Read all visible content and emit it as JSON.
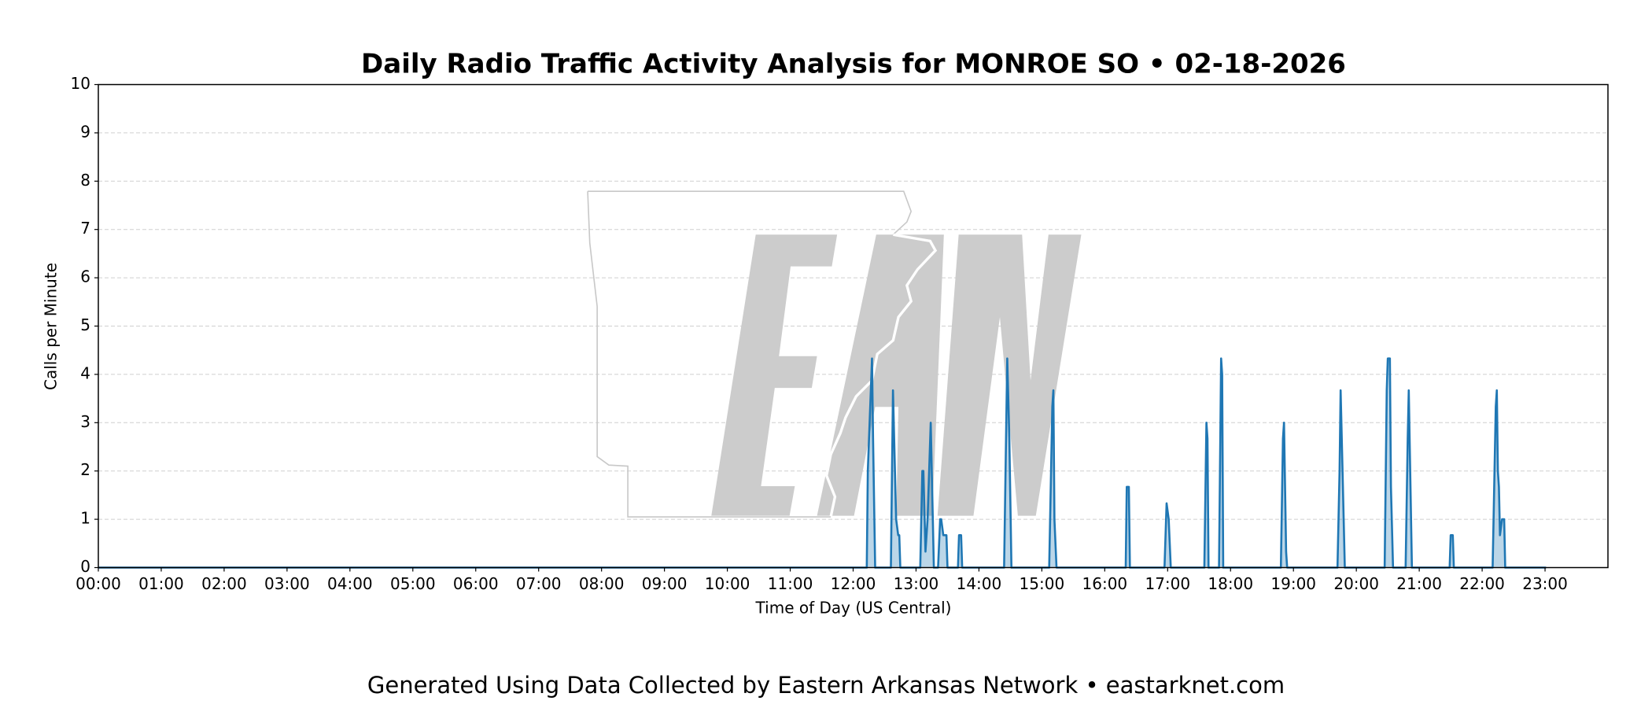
{
  "chart_data": {
    "type": "area",
    "title": "Daily Radio Traffic Activity Analysis for MONROE SO • 02-18-2026",
    "x_label": "Time of Day (US Central)",
    "y_label": "Calls per Minute",
    "footer": "Generated Using Data Collected by Eastern Arkansas Network • eastarknet.com",
    "color": "#1f77b4",
    "grid": true,
    "xlim": [
      0,
      1440
    ],
    "ylim": [
      0,
      10
    ],
    "xticks": [
      {
        "value": 0,
        "label": "00:00"
      },
      {
        "value": 60,
        "label": "01:00"
      },
      {
        "value": 120,
        "label": "02:00"
      },
      {
        "value": 180,
        "label": "03:00"
      },
      {
        "value": 240,
        "label": "04:00"
      },
      {
        "value": 300,
        "label": "05:00"
      },
      {
        "value": 360,
        "label": "06:00"
      },
      {
        "value": 420,
        "label": "07:00"
      },
      {
        "value": 480,
        "label": "08:00"
      },
      {
        "value": 540,
        "label": "09:00"
      },
      {
        "value": 600,
        "label": "10:00"
      },
      {
        "value": 660,
        "label": "11:00"
      },
      {
        "value": 720,
        "label": "12:00"
      },
      {
        "value": 780,
        "label": "13:00"
      },
      {
        "value": 840,
        "label": "14:00"
      },
      {
        "value": 900,
        "label": "15:00"
      },
      {
        "value": 960,
        "label": "16:00"
      },
      {
        "value": 1020,
        "label": "17:00"
      },
      {
        "value": 1080,
        "label": "18:00"
      },
      {
        "value": 1140,
        "label": "19:00"
      },
      {
        "value": 1200,
        "label": "20:00"
      },
      {
        "value": 1260,
        "label": "21:00"
      },
      {
        "value": 1320,
        "label": "22:00"
      },
      {
        "value": 1380,
        "label": "23:00"
      }
    ],
    "yticks": [
      0,
      1,
      2,
      3,
      4,
      5,
      6,
      7,
      8,
      9,
      10
    ],
    "x": [
      0,
      733,
      734,
      738,
      739,
      741,
      756,
      758,
      761,
      763,
      764,
      765,
      784,
      786,
      787,
      789,
      791,
      794,
      797,
      801,
      803,
      804,
      806,
      809,
      810,
      820,
      821,
      823,
      824,
      864,
      867,
      869,
      871,
      907,
      910,
      911,
      912,
      914,
      980,
      981,
      983,
      984,
      1017,
      1019,
      1021,
      1023,
      1055,
      1057,
      1058,
      1059,
      1069,
      1071,
      1072,
      1073,
      1128,
      1130,
      1131,
      1133,
      1134,
      1182,
      1184,
      1185,
      1189,
      1227,
      1229,
      1230,
      1232,
      1233,
      1235,
      1247,
      1249,
      1250,
      1253,
      1289,
      1290,
      1292,
      1293,
      1330,
      1333,
      1334,
      1335,
      1336,
      1337,
      1339,
      1341,
      1342,
      1381
    ],
    "values": [
      0,
      0,
      2,
      4.33,
      2.67,
      0,
      0,
      3.67,
      1,
      0.67,
      0.67,
      0,
      0,
      2,
      2,
      0.33,
      1,
      3,
      0,
      0,
      1,
      1,
      0.67,
      0.67,
      0,
      0,
      0.67,
      0.67,
      0,
      0,
      4.33,
      2.67,
      0,
      0,
      3.33,
      3.67,
      1,
      0,
      0,
      1.67,
      1.67,
      0,
      0,
      1.33,
      1,
      0,
      0,
      3,
      2.67,
      0,
      0,
      4.33,
      4,
      0,
      0,
      2.67,
      3,
      0.33,
      0,
      0,
      2,
      3.67,
      0,
      0,
      3.67,
      4.33,
      4.33,
      1.67,
      0,
      0,
      2.67,
      3.67,
      0,
      0,
      0.67,
      0.67,
      0,
      0,
      3.33,
      3.67,
      2,
      1.67,
      0.67,
      1,
      1,
      0,
      0
    ]
  }
}
